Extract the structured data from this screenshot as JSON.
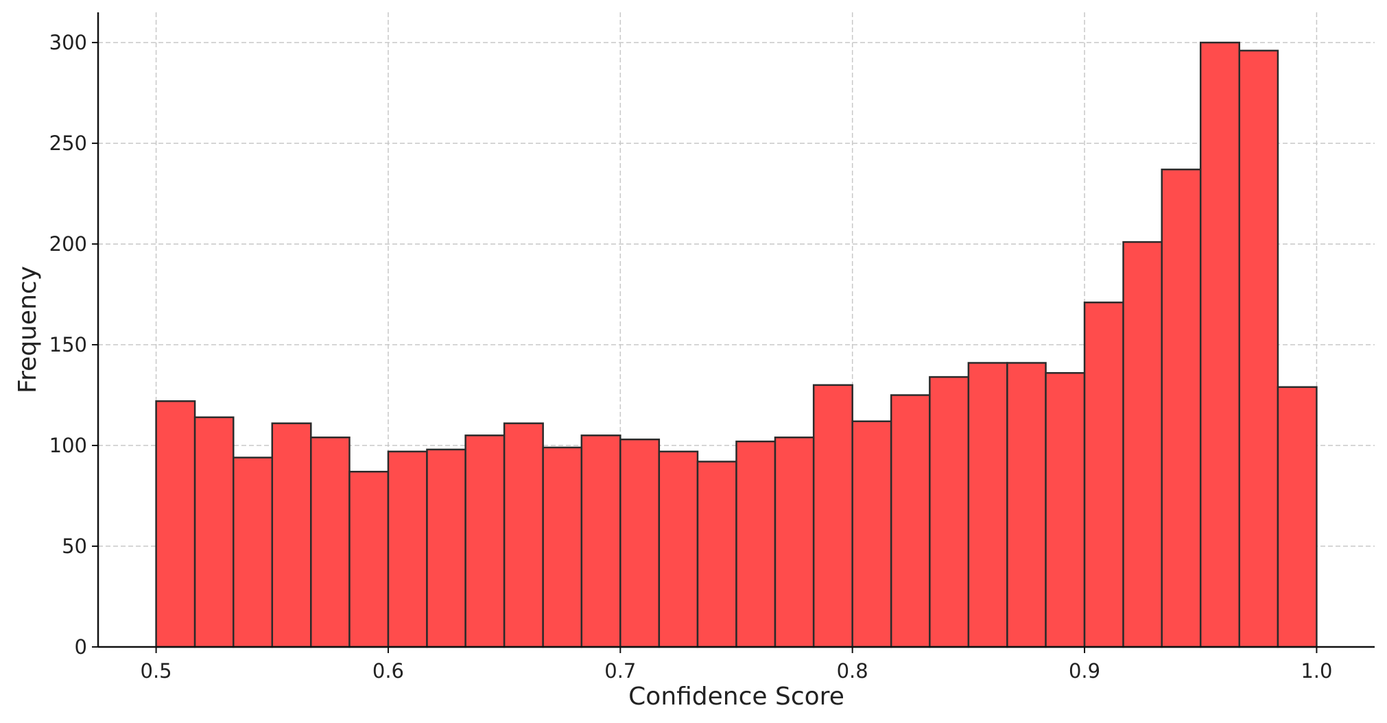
{
  "chart_data": {
    "type": "bar",
    "subtype": "histogram",
    "title": "",
    "xlabel": "Confidence Score",
    "ylabel": "Frequency",
    "xlim": [
      0.475,
      1.025
    ],
    "ylim": [
      0,
      315
    ],
    "x_ticks": [
      "0.5",
      "0.6",
      "0.7",
      "0.8",
      "0.9",
      "1.0"
    ],
    "y_ticks": [
      "0",
      "50",
      "100",
      "150",
      "200",
      "250",
      "300"
    ],
    "grid": true,
    "bar_color": "#ff4c4c",
    "edge_color": "#2b2b2b",
    "bin_edges": [
      0.5,
      0.5167,
      0.5333,
      0.55,
      0.5667,
      0.5833,
      0.6,
      0.6167,
      0.6333,
      0.65,
      0.6667,
      0.6833,
      0.7,
      0.7167,
      0.7333,
      0.75,
      0.7667,
      0.7833,
      0.8,
      0.8167,
      0.8333,
      0.85,
      0.8667,
      0.8833,
      0.9,
      0.9167,
      0.9333,
      0.95,
      0.9667,
      0.9833,
      1.0
    ],
    "values": [
      122,
      114,
      94,
      111,
      104,
      87,
      97,
      98,
      105,
      111,
      99,
      105,
      103,
      97,
      92,
      102,
      104,
      130,
      112,
      125,
      134,
      141,
      141,
      136,
      171,
      201,
      237,
      300,
      296,
      129
    ]
  }
}
